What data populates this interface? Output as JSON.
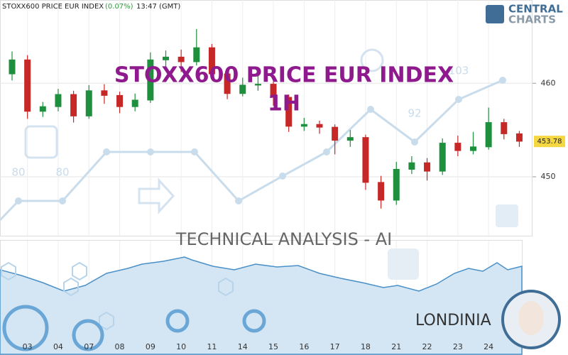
{
  "chart_data": {
    "type": "candlestick",
    "instrument": "STOXX600 PRICE EUR INDEX",
    "change": {
      "value": 0.07,
      "label": "(0.07%)"
    },
    "time": "13:47 (GMT)",
    "title": "STOXX600 PRICE EUR INDEX",
    "subtitle": "1H",
    "categories": [
      null,
      "03",
      null,
      "04",
      null,
      "07",
      null,
      "08",
      null,
      "09",
      null,
      "10",
      null,
      "11",
      null,
      "14",
      null,
      "15",
      null,
      "16",
      null,
      "17",
      null,
      "18",
      null,
      "21",
      null,
      "22",
      null,
      "23",
      null,
      "24",
      null,
      null
    ],
    "open": [
      461.0,
      462.5,
      457.0,
      457.5,
      458.8,
      456.5,
      459.2,
      458.7,
      457.5,
      458.2,
      462.5,
      462.8,
      462.3,
      463.8,
      461.0,
      458.9,
      459.8,
      459.9,
      458.5,
      455.4,
      455.6,
      455.3,
      453.9,
      454.2,
      449.4,
      447.5,
      450.8,
      451.5,
      450.6,
      453.6,
      452.8,
      453.2,
      455.8,
      454.6
    ],
    "high": [
      463.4,
      463.0,
      458.0,
      459.4,
      459.2,
      459.8,
      459.9,
      459.1,
      458.9,
      463.3,
      463.5,
      463.6,
      465.8,
      464.2,
      461.3,
      460.6,
      460.8,
      460.2,
      458.8,
      456.3,
      456.0,
      455.6,
      455.0,
      454.5,
      450.1,
      451.6,
      452.2,
      452.0,
      454.1,
      454.4,
      454.8,
      457.4,
      456.2,
      454.9
    ],
    "low": [
      460.3,
      456.2,
      456.4,
      457.0,
      455.8,
      456.2,
      457.8,
      456.8,
      457.0,
      457.9,
      461.8,
      461.2,
      461.9,
      460.5,
      458.3,
      458.6,
      459.2,
      457.6,
      454.8,
      454.9,
      454.6,
      452.4,
      453.2,
      448.6,
      446.6,
      447.0,
      450.3,
      449.6,
      450.2,
      452.2,
      452.4,
      452.9,
      454.0,
      453.2
    ],
    "close": [
      462.5,
      457.0,
      457.5,
      458.8,
      456.5,
      459.2,
      458.7,
      457.5,
      458.2,
      462.5,
      462.8,
      462.3,
      463.8,
      461.0,
      458.9,
      459.8,
      459.9,
      458.5,
      455.4,
      455.6,
      455.3,
      453.9,
      454.2,
      449.4,
      447.5,
      450.8,
      451.5,
      450.6,
      453.6,
      452.8,
      453.2,
      455.8,
      454.6,
      453.8
    ],
    "up_color": "#1e8f3c",
    "down_color": "#c62828",
    "last_price": 453.78,
    "ylim": [
      443.7,
      468.9
    ],
    "yticks": [
      450,
      460
    ],
    "grid": true,
    "score_labels": [
      80,
      80,
      92,
      103
    ],
    "watermark": "TECHNICAL  ANALYSIS - AI",
    "brand": [
      "CENTRAL",
      "CHARTS"
    ],
    "assistant": "LONDINIA"
  }
}
